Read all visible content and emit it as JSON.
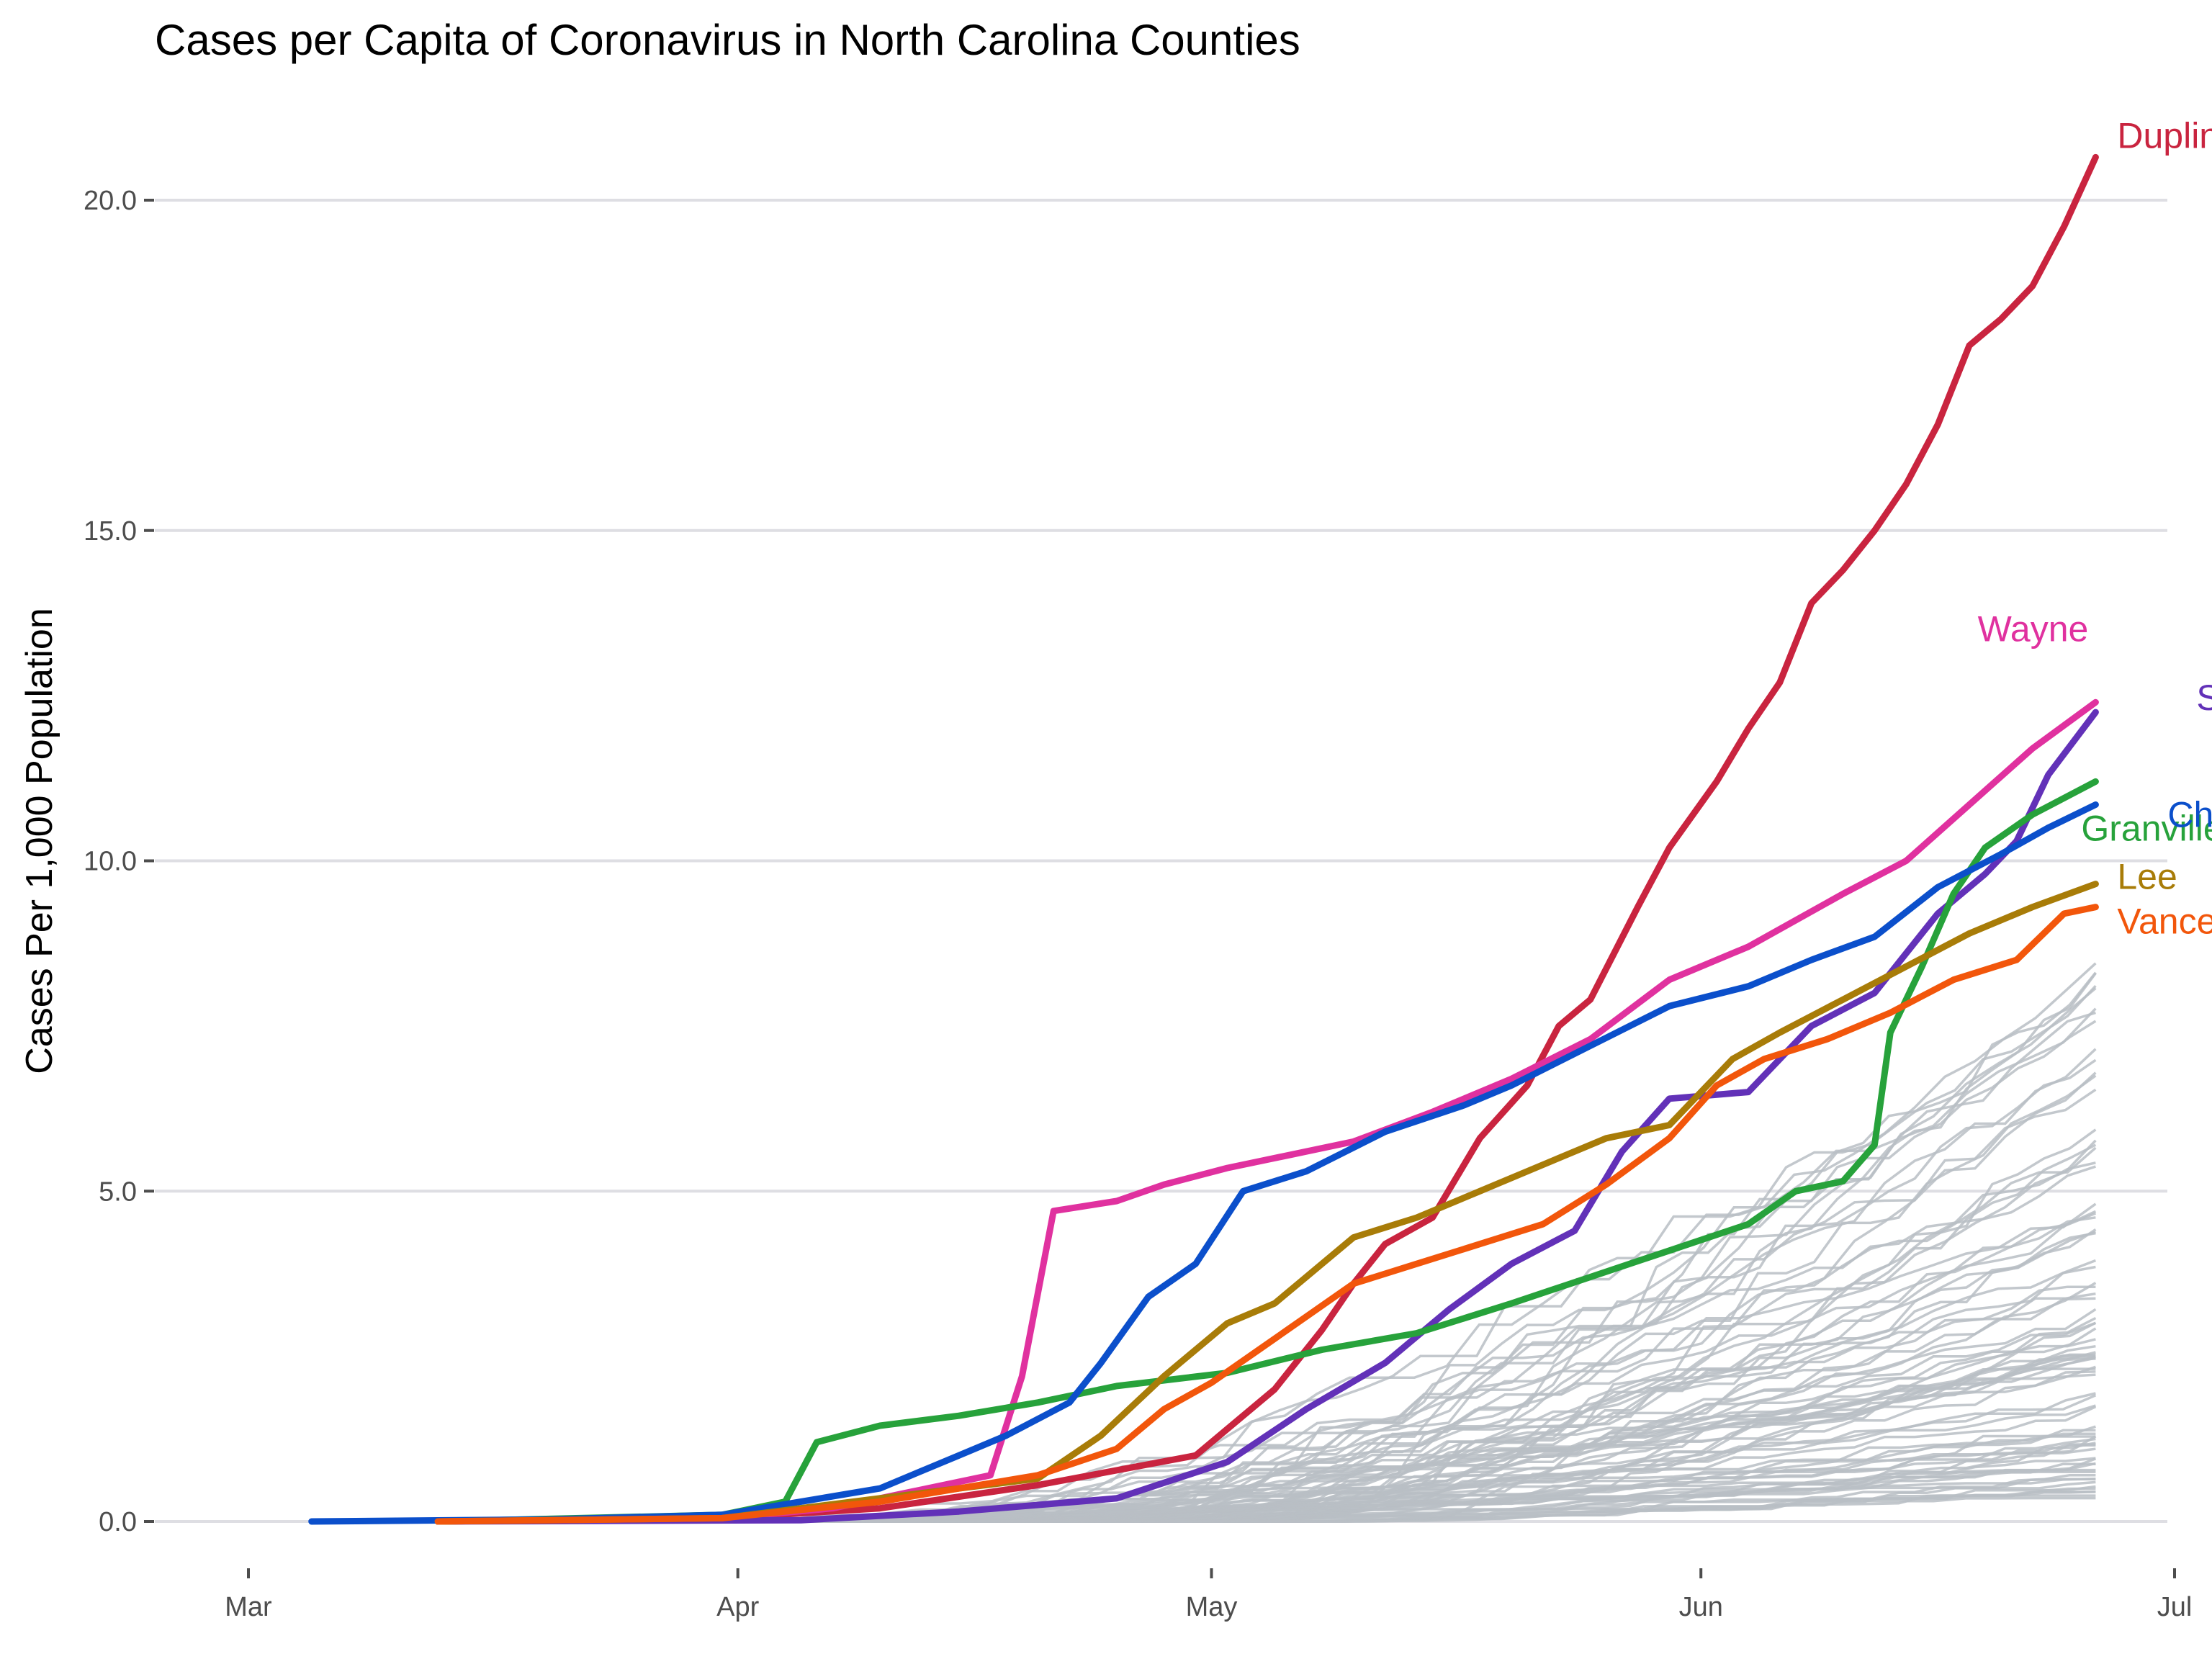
{
  "chart_data": {
    "type": "line",
    "title": "Cases per Capita of Coronavirus in North Carolina Counties",
    "xlabel": "",
    "ylabel": "Cases Per 1,000 Population",
    "x_axis": {
      "type": "date",
      "range": [
        "2020-03-01",
        "2020-07-01"
      ],
      "ticks": [
        {
          "date": "2020-03-01",
          "label": "Mar"
        },
        {
          "date": "2020-04-01",
          "label": "Apr"
        },
        {
          "date": "2020-05-01",
          "label": "May"
        },
        {
          "date": "2020-06-01",
          "label": "Jun"
        },
        {
          "date": "2020-07-01",
          "label": "Jul"
        }
      ]
    },
    "y_axis": {
      "range": [
        -0.6,
        21.8
      ],
      "ticks": [
        0,
        5,
        10,
        15,
        20
      ],
      "tick_labels": [
        "0.0",
        "5.0",
        "10.0",
        "15.0",
        "20.0"
      ]
    },
    "grid": "horizontal major",
    "legend": "none (direct labels at line ends)",
    "background_color": "#b9bec4",
    "series": [
      {
        "name": "Duplin",
        "color": "#c9243f",
        "label_position": "right",
        "points": [
          [
            "2020-03-13",
            0
          ],
          [
            "2020-03-31",
            0.05
          ],
          [
            "2020-04-10",
            0.2
          ],
          [
            "2020-04-20",
            0.55
          ],
          [
            "2020-04-30",
            1.0
          ],
          [
            "2020-05-05",
            2.0
          ],
          [
            "2020-05-08",
            2.9
          ],
          [
            "2020-05-10",
            3.6
          ],
          [
            "2020-05-12",
            4.2
          ],
          [
            "2020-05-15",
            4.6
          ],
          [
            "2020-05-18",
            5.8
          ],
          [
            "2020-05-21",
            6.6
          ],
          [
            "2020-05-23",
            7.5
          ],
          [
            "2020-05-25",
            7.9
          ],
          [
            "2020-05-28",
            9.3
          ],
          [
            "2020-05-30",
            10.2
          ],
          [
            "2020-06-02",
            11.2
          ],
          [
            "2020-06-04",
            12.0
          ],
          [
            "2020-06-06",
            12.7
          ],
          [
            "2020-06-08",
            13.9
          ],
          [
            "2020-06-10",
            14.4
          ],
          [
            "2020-06-12",
            15.0
          ],
          [
            "2020-06-14",
            15.7
          ],
          [
            "2020-06-16",
            16.6
          ],
          [
            "2020-06-18",
            17.8
          ],
          [
            "2020-06-20",
            18.2
          ],
          [
            "2020-06-22",
            18.7
          ],
          [
            "2020-06-24",
            19.6
          ],
          [
            "2020-06-26",
            20.65
          ]
        ]
      },
      {
        "name": "Wayne",
        "color": "#e0319f",
        "label_position": "above",
        "points": [
          [
            "2020-03-13",
            0
          ],
          [
            "2020-03-31",
            0.05
          ],
          [
            "2020-04-07",
            0.2
          ],
          [
            "2020-04-12",
            0.45
          ],
          [
            "2020-04-17",
            0.7
          ],
          [
            "2020-04-19",
            2.2
          ],
          [
            "2020-04-21",
            4.7
          ],
          [
            "2020-04-25",
            4.85
          ],
          [
            "2020-04-28",
            5.1
          ],
          [
            "2020-05-02",
            5.35
          ],
          [
            "2020-05-06",
            5.55
          ],
          [
            "2020-05-10",
            5.75
          ],
          [
            "2020-05-15",
            6.2
          ],
          [
            "2020-05-20",
            6.7
          ],
          [
            "2020-05-25",
            7.3
          ],
          [
            "2020-05-30",
            8.2
          ],
          [
            "2020-06-04",
            8.7
          ],
          [
            "2020-06-10",
            9.5
          ],
          [
            "2020-06-14",
            10.0
          ],
          [
            "2020-06-18",
            10.85
          ],
          [
            "2020-06-22",
            11.7
          ],
          [
            "2020-06-26",
            12.4
          ]
        ]
      },
      {
        "name": "Sampson",
        "color": "#6231b8",
        "label_position": "right",
        "points": [
          [
            "2020-03-13",
            0
          ],
          [
            "2020-04-05",
            0.02
          ],
          [
            "2020-04-15",
            0.15
          ],
          [
            "2020-04-25",
            0.35
          ],
          [
            "2020-05-02",
            0.9
          ],
          [
            "2020-05-07",
            1.7
          ],
          [
            "2020-05-12",
            2.4
          ],
          [
            "2020-05-16",
            3.2
          ],
          [
            "2020-05-20",
            3.9
          ],
          [
            "2020-05-24",
            4.4
          ],
          [
            "2020-05-27",
            5.6
          ],
          [
            "2020-05-30",
            6.4
          ],
          [
            "2020-06-04",
            6.5
          ],
          [
            "2020-06-08",
            7.5
          ],
          [
            "2020-06-12",
            8.0
          ],
          [
            "2020-06-16",
            9.2
          ],
          [
            "2020-06-19",
            9.8
          ],
          [
            "2020-06-21",
            10.3
          ],
          [
            "2020-06-23",
            11.3
          ],
          [
            "2020-06-26",
            12.25
          ]
        ]
      },
      {
        "name": "Granville",
        "color": "#27a23b",
        "label_position": "right",
        "points": [
          [
            "2020-03-13",
            0
          ],
          [
            "2020-03-31",
            0.1
          ],
          [
            "2020-04-04",
            0.3
          ],
          [
            "2020-04-06",
            1.2
          ],
          [
            "2020-04-10",
            1.45
          ],
          [
            "2020-04-15",
            1.6
          ],
          [
            "2020-04-20",
            1.8
          ],
          [
            "2020-04-25",
            2.05
          ],
          [
            "2020-05-02",
            2.25
          ],
          [
            "2020-05-08",
            2.6
          ],
          [
            "2020-05-14",
            2.85
          ],
          [
            "2020-05-20",
            3.3
          ],
          [
            "2020-05-25",
            3.7
          ],
          [
            "2020-05-30",
            4.1
          ],
          [
            "2020-06-04",
            4.5
          ],
          [
            "2020-06-07",
            5.0
          ],
          [
            "2020-06-10",
            5.15
          ],
          [
            "2020-06-12",
            5.7
          ],
          [
            "2020-06-13",
            7.4
          ],
          [
            "2020-06-15",
            8.4
          ],
          [
            "2020-06-17",
            9.5
          ],
          [
            "2020-06-19",
            10.2
          ],
          [
            "2020-06-22",
            10.7
          ],
          [
            "2020-06-26",
            11.2
          ]
        ]
      },
      {
        "name": "Chatham",
        "color": "#0b4fcb",
        "label_position": "right",
        "points": [
          [
            "2020-03-05",
            0
          ],
          [
            "2020-03-20",
            0.03
          ],
          [
            "2020-03-31",
            0.1
          ],
          [
            "2020-04-10",
            0.5
          ],
          [
            "2020-04-15",
            1.0
          ],
          [
            "2020-04-18",
            1.3
          ],
          [
            "2020-04-22",
            1.8
          ],
          [
            "2020-04-24",
            2.4
          ],
          [
            "2020-04-27",
            3.4
          ],
          [
            "2020-04-30",
            3.9
          ],
          [
            "2020-05-03",
            5.0
          ],
          [
            "2020-05-07",
            5.3
          ],
          [
            "2020-05-12",
            5.9
          ],
          [
            "2020-05-17",
            6.3
          ],
          [
            "2020-05-20",
            6.6
          ],
          [
            "2020-05-25",
            7.2
          ],
          [
            "2020-05-30",
            7.8
          ],
          [
            "2020-06-04",
            8.1
          ],
          [
            "2020-06-08",
            8.5
          ],
          [
            "2020-06-12",
            8.85
          ],
          [
            "2020-06-16",
            9.6
          ],
          [
            "2020-06-20",
            10.1
          ],
          [
            "2020-06-23",
            10.5
          ],
          [
            "2020-06-26",
            10.85
          ]
        ]
      },
      {
        "name": "Lee",
        "color": "#a87c08",
        "label_position": "right",
        "points": [
          [
            "2020-03-13",
            0
          ],
          [
            "2020-03-31",
            0.05
          ],
          [
            "2020-04-10",
            0.35
          ],
          [
            "2020-04-20",
            0.65
          ],
          [
            "2020-04-24",
            1.3
          ],
          [
            "2020-04-28",
            2.2
          ],
          [
            "2020-05-02",
            3.0
          ],
          [
            "2020-05-05",
            3.3
          ],
          [
            "2020-05-10",
            4.3
          ],
          [
            "2020-05-14",
            4.6
          ],
          [
            "2020-05-18",
            5.0
          ],
          [
            "2020-05-22",
            5.4
          ],
          [
            "2020-05-26",
            5.8
          ],
          [
            "2020-05-30",
            6.0
          ],
          [
            "2020-06-03",
            7.0
          ],
          [
            "2020-06-06",
            7.4
          ],
          [
            "2020-06-10",
            7.9
          ],
          [
            "2020-06-14",
            8.4
          ],
          [
            "2020-06-18",
            8.9
          ],
          [
            "2020-06-22",
            9.3
          ],
          [
            "2020-06-26",
            9.65
          ]
        ]
      },
      {
        "name": "Vance",
        "color": "#f2560b",
        "label_position": "right",
        "points": [
          [
            "2020-03-13",
            0
          ],
          [
            "2020-03-31",
            0.05
          ],
          [
            "2020-04-10",
            0.3
          ],
          [
            "2020-04-20",
            0.7
          ],
          [
            "2020-04-25",
            1.1
          ],
          [
            "2020-04-28",
            1.7
          ],
          [
            "2020-05-01",
            2.1
          ],
          [
            "2020-05-04",
            2.6
          ],
          [
            "2020-05-07",
            3.1
          ],
          [
            "2020-05-10",
            3.6
          ],
          [
            "2020-05-14",
            3.9
          ],
          [
            "2020-05-18",
            4.2
          ],
          [
            "2020-05-22",
            4.5
          ],
          [
            "2020-05-26",
            5.1
          ],
          [
            "2020-05-30",
            5.8
          ],
          [
            "2020-06-02",
            6.6
          ],
          [
            "2020-06-05",
            7.0
          ],
          [
            "2020-06-09",
            7.3
          ],
          [
            "2020-06-13",
            7.7
          ],
          [
            "2020-06-17",
            8.2
          ],
          [
            "2020-06-21",
            8.5
          ],
          [
            "2020-06-24",
            9.2
          ],
          [
            "2020-06-26",
            9.3
          ]
        ]
      }
    ]
  }
}
